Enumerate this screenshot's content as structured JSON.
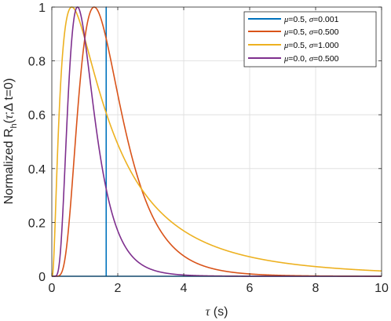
{
  "chart_data": {
    "type": "line",
    "xlabel": {
      "symbol": "τ",
      "rest": " (s)"
    },
    "ylabel": {
      "main": "Normalized R",
      "sub": "h",
      "open": "(",
      "tau": "τ",
      "sep": ";",
      "delta": "Δ",
      "rest": " t=0)"
    },
    "xlim": [
      0,
      10
    ],
    "ylim": [
      0,
      1
    ],
    "x_ticks": [
      0,
      2,
      4,
      6,
      8,
      10
    ],
    "x_tick_labels": [
      "0",
      "2",
      "4",
      "6",
      "8",
      "10"
    ],
    "y_ticks": [
      0,
      0.2,
      0.4,
      0.6,
      0.8,
      1
    ],
    "y_tick_labels": [
      "0",
      "0.2",
      "0.4",
      "0.6",
      "0.8",
      "1"
    ],
    "grid": true,
    "legend_position": "top-right",
    "series": [
      {
        "name": "μ=0.5, σ=0.001",
        "mu_label": "μ",
        "mu_text": "=0.5, ",
        "sigma_label": "σ",
        "sigma_text": "=0.001",
        "mu": 0.5,
        "sigma": 0.001,
        "color": "#0072BD"
      },
      {
        "name": "μ=0.5, σ=0.500",
        "mu_label": "μ",
        "mu_text": "=0.5, ",
        "sigma_label": "σ",
        "sigma_text": "=0.500",
        "mu": 0.5,
        "sigma": 0.5,
        "color": "#D95319"
      },
      {
        "name": "μ=0.5, σ=1.000",
        "mu_label": "μ",
        "mu_text": "=0.5, ",
        "sigma_label": "σ",
        "sigma_text": "=1.000",
        "mu": 0.5,
        "sigma": 1.0,
        "color": "#EDB120"
      },
      {
        "name": "μ=0.0, σ=0.500",
        "mu_label": "μ",
        "mu_text": "=0.0, ",
        "sigma_label": "σ",
        "sigma_text": "=0.500",
        "mu": 0.0,
        "sigma": 0.5,
        "color": "#7E2F8E"
      }
    ]
  }
}
